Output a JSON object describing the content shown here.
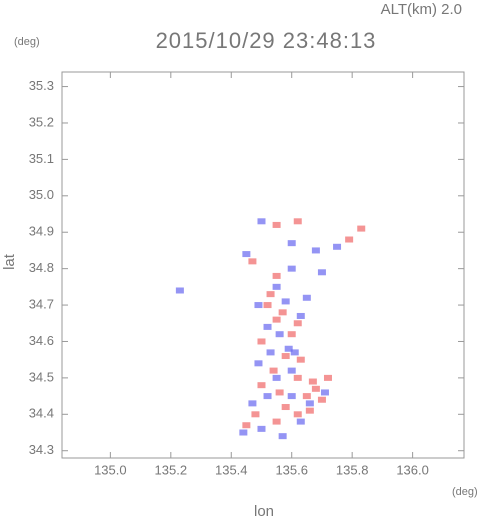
{
  "chart_data": {
    "type": "scatter",
    "title": "2015/10/29 23:48:13",
    "subtitle": "ALT(km) 2.0",
    "x_label": "lon",
    "y_label": "lat",
    "x_unit": "(deg)",
    "y_unit": "(deg)",
    "xlim": [
      134.84,
      136.17
    ],
    "ylim": [
      34.28,
      35.34
    ],
    "xticks": [
      {
        "value": 135,
        "label": "135.0"
      },
      135.2,
      135.4,
      135.6,
      135.8,
      {
        "value": 136,
        "label": "136.0"
      }
    ],
    "yticks": [
      34.3,
      34.4,
      34.5,
      34.6,
      34.7,
      34.8,
      34.9,
      {
        "value": 35,
        "label": "35.0"
      },
      35.1,
      35.2,
      35.3
    ],
    "series": [
      {
        "color": "#f07070",
        "x": [
          135.55,
          135.62,
          135.83,
          135.79,
          135.47,
          135.55,
          135.52,
          135.57,
          135.55,
          135.62,
          135.6,
          135.5,
          135.58,
          135.63,
          135.54,
          135.62,
          135.67,
          135.5,
          135.56,
          135.65,
          135.7,
          135.58,
          135.66,
          135.48,
          135.62,
          135.55,
          135.45,
          135.68,
          135.72,
          135.53
        ],
        "values": [
          34.92,
          34.93,
          34.91,
          34.88,
          34.82,
          34.78,
          34.7,
          34.68,
          34.66,
          34.65,
          34.62,
          34.6,
          34.56,
          34.55,
          34.52,
          34.5,
          34.49,
          34.48,
          34.46,
          34.45,
          34.44,
          34.42,
          34.41,
          34.4,
          34.4,
          34.38,
          34.37,
          34.47,
          34.5,
          34.73
        ]
      },
      {
        "color": "#7070f0",
        "x": [
          135.5,
          135.6,
          135.68,
          135.75,
          135.45,
          135.7,
          135.6,
          135.55,
          135.65,
          135.49,
          135.58,
          135.63,
          135.52,
          135.56,
          135.59,
          135.53,
          135.61,
          135.49,
          135.55,
          135.6,
          135.52,
          135.6,
          135.47,
          135.63,
          135.5,
          135.44,
          135.57,
          135.66,
          135.71,
          135.23
        ],
        "values": [
          34.93,
          34.87,
          34.85,
          34.86,
          34.84,
          34.79,
          34.8,
          34.75,
          34.72,
          34.7,
          34.71,
          34.67,
          34.64,
          34.62,
          34.58,
          34.57,
          34.57,
          34.54,
          34.5,
          34.52,
          34.45,
          34.45,
          34.43,
          34.38,
          34.36,
          34.35,
          34.34,
          34.43,
          34.46,
          34.74
        ]
      }
    ]
  }
}
